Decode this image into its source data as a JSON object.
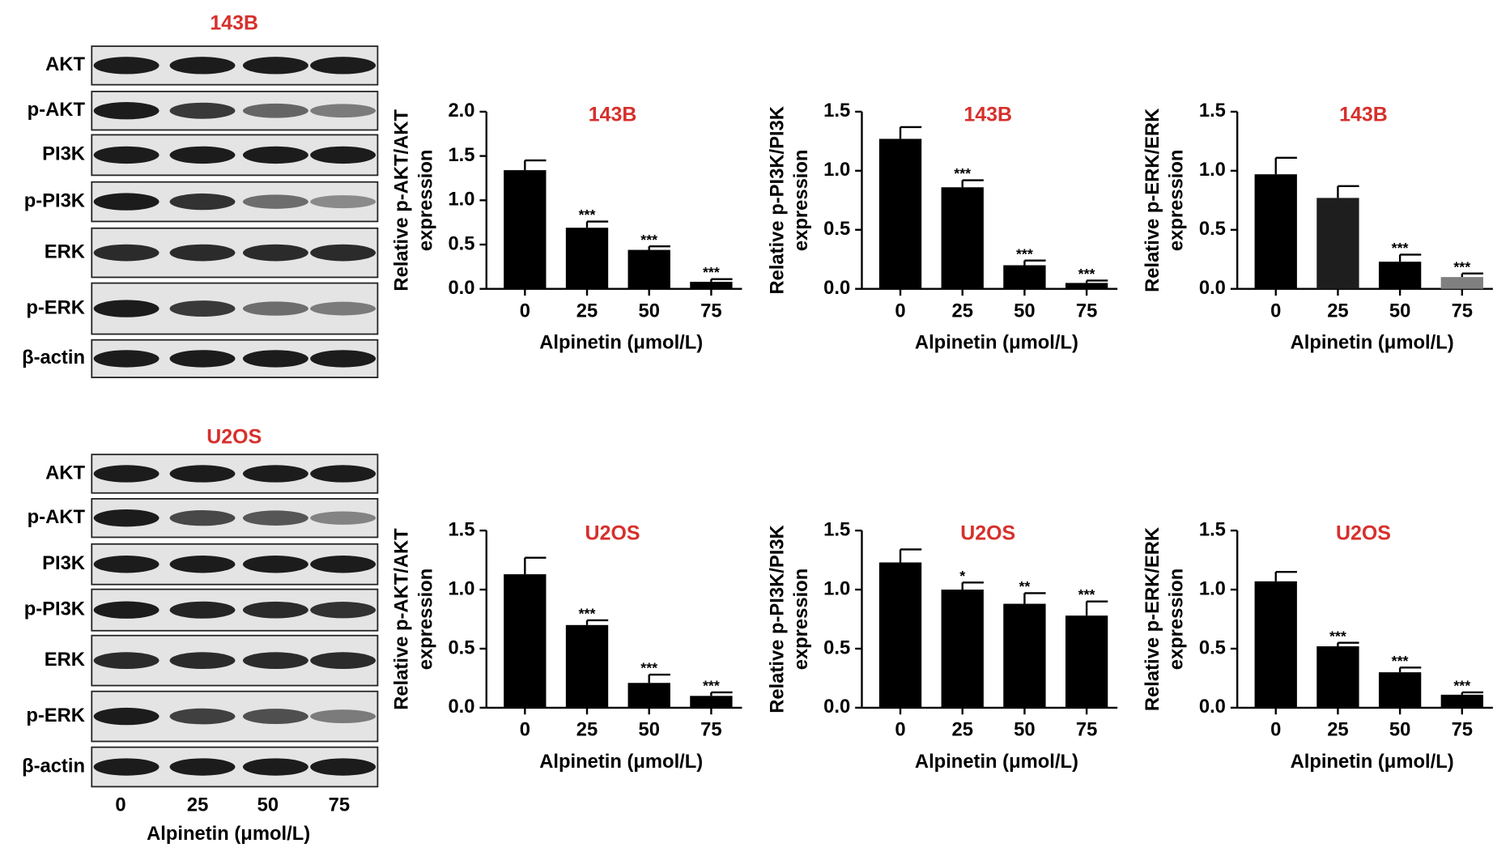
{
  "blots": [
    {
      "title": "143B",
      "rows": [
        "AKT",
        "p-AKT",
        "PI3K",
        "p-PI3K",
        "ERK",
        "p-ERK",
        "β-actin"
      ]
    },
    {
      "title": "U2OS",
      "rows": [
        "AKT",
        "p-AKT",
        "PI3K",
        "p-PI3K",
        "ERK",
        "p-ERK",
        "β-actin"
      ]
    }
  ],
  "blot_lanes": [
    "0",
    "25",
    "50",
    "75"
  ],
  "blot_xlabel": "Alpinetin (μmol/L)",
  "chart_data": [
    {
      "type": "bar",
      "title": "143B",
      "ylabel": [
        "Relative p-AKT/AKT",
        "expression"
      ],
      "xlabel": "Alpinetin (μmol/L)",
      "categories": [
        "0",
        "25",
        "50",
        "75"
      ],
      "values": [
        1.34,
        0.69,
        0.44,
        0.08
      ],
      "errors": [
        0.11,
        0.07,
        0.04,
        0.03
      ],
      "annotations": [
        null,
        "***",
        "***",
        "***"
      ],
      "colors": [
        "#000000",
        "#000000",
        "#000000",
        "#000000"
      ],
      "ylim": [
        0,
        2
      ],
      "yticks": [
        {
          "value": 0,
          "label": "0.0"
        },
        0.5,
        {
          "value": 1,
          "label": "1.0"
        },
        1.5,
        {
          "value": 2,
          "label": "2.0"
        }
      ]
    },
    {
      "type": "bar",
      "title": "143B",
      "ylabel": [
        "Relative p-PI3K/PI3K",
        "expression"
      ],
      "xlabel": "Alpinetin (μmol/L)",
      "categories": [
        "0",
        "25",
        "50",
        "75"
      ],
      "values": [
        1.27,
        0.86,
        0.2,
        0.05
      ],
      "errors": [
        0.1,
        0.06,
        0.04,
        0.02
      ],
      "annotations": [
        null,
        "***",
        "***",
        "***"
      ],
      "colors": [
        "#000000",
        "#000000",
        "#000000",
        "#000000"
      ],
      "ylim": [
        0,
        1.5
      ],
      "yticks": [
        {
          "value": 0,
          "label": "0.0"
        },
        0.5,
        {
          "value": 1,
          "label": "1.0"
        },
        1.5
      ]
    },
    {
      "type": "bar",
      "title": "143B",
      "ylabel": [
        "Relative p-ERK/ERK",
        "expression"
      ],
      "xlabel": "Alpinetin (μmol/L)",
      "categories": [
        "0",
        "25",
        "50",
        "75"
      ],
      "values": [
        0.97,
        0.77,
        0.23,
        0.1
      ],
      "errors": [
        0.14,
        0.1,
        0.06,
        0.03
      ],
      "annotations": [
        null,
        null,
        "***",
        "***"
      ],
      "colors": [
        "#000000",
        "#1e1e1e",
        "#000000",
        "#808080"
      ],
      "ylim": [
        0,
        1.5
      ],
      "yticks": [
        {
          "value": 0,
          "label": "0.0"
        },
        0.5,
        {
          "value": 1,
          "label": "1.0"
        },
        1.5
      ]
    },
    {
      "type": "bar",
      "title": "U2OS",
      "ylabel": [
        "Relative p-AKT/AKT",
        "expression"
      ],
      "xlabel": "Alpinetin (μmol/L)",
      "categories": [
        "0",
        "25",
        "50",
        "75"
      ],
      "values": [
        1.13,
        0.7,
        0.21,
        0.1
      ],
      "errors": [
        0.14,
        0.04,
        0.07,
        0.03
      ],
      "annotations": [
        null,
        "***",
        "***",
        "***"
      ],
      "colors": [
        "#000000",
        "#000000",
        "#000000",
        "#000000"
      ],
      "ylim": [
        0,
        1.5
      ],
      "yticks": [
        {
          "value": 0,
          "label": "0.0"
        },
        0.5,
        {
          "value": 1,
          "label": "1.0"
        },
        1.5
      ]
    },
    {
      "type": "bar",
      "title": "U2OS",
      "ylabel": [
        "Relative p-PI3K/PI3K",
        "expression"
      ],
      "xlabel": "Alpinetin (μmol/L)",
      "categories": [
        "0",
        "25",
        "50",
        "75"
      ],
      "values": [
        1.23,
        1.0,
        0.88,
        0.78
      ],
      "errors": [
        0.11,
        0.06,
        0.09,
        0.12
      ],
      "annotations": [
        null,
        "*",
        "**",
        "***"
      ],
      "colors": [
        "#000000",
        "#000000",
        "#000000",
        "#000000"
      ],
      "ylim": [
        0,
        1.5
      ],
      "yticks": [
        {
          "value": 0,
          "label": "0.0"
        },
        0.5,
        {
          "value": 1,
          "label": "1.0"
        },
        1.5
      ]
    },
    {
      "type": "bar",
      "title": "U2OS",
      "ylabel": [
        "Relative p-ERK/ERK",
        "expression"
      ],
      "xlabel": "Alpinetin (μmol/L)",
      "categories": [
        "0",
        "25",
        "50",
        "75"
      ],
      "values": [
        1.07,
        0.52,
        0.3,
        0.11
      ],
      "errors": [
        0.08,
        0.03,
        0.04,
        0.02
      ],
      "annotations": [
        null,
        "***",
        "***",
        "***"
      ],
      "colors": [
        "#000000",
        "#000000",
        "#000000",
        "#000000"
      ],
      "ylim": [
        0,
        1.5
      ],
      "yticks": [
        {
          "value": 0,
          "label": "0.0"
        },
        0.5,
        {
          "value": 1,
          "label": "1.0"
        },
        1.5
      ]
    }
  ]
}
